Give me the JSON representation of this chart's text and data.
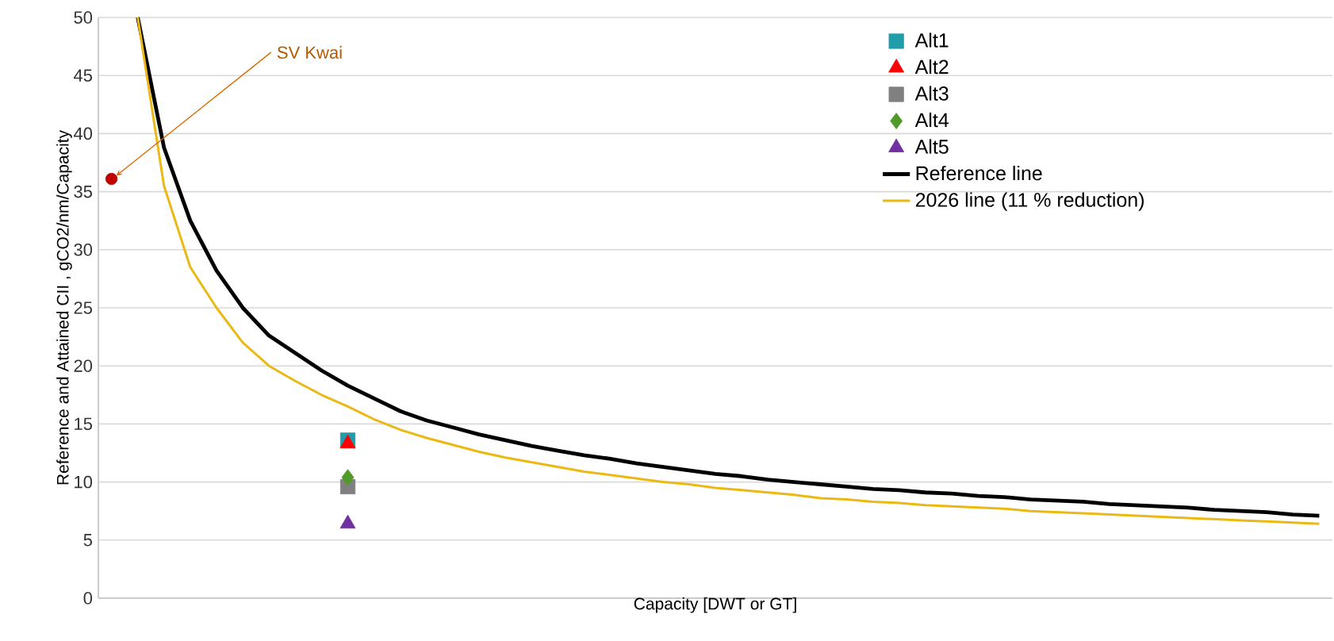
{
  "chart_data": {
    "type": "scatter",
    "xlabel": "Capacity [DWT or GT]",
    "ylabel": "Reference and Attained CII , gCO2/nm/Capacity",
    "categories": [
      null,
      null,
      null,
      null,
      null,
      null,
      null,
      null,
      null,
      null,
      null,
      null,
      null,
      null,
      null,
      null,
      null,
      null,
      null,
      null,
      null,
      null,
      null,
      null,
      null,
      null,
      null,
      null,
      null,
      null,
      null,
      null,
      null,
      null,
      null,
      null,
      null,
      null,
      null,
      null,
      null,
      null,
      null,
      null,
      null,
      null,
      null
    ],
    "ylim": [
      0,
      50
    ],
    "yticks": [
      0,
      5,
      10,
      15,
      20,
      25,
      30,
      35,
      40,
      45,
      50
    ],
    "grid": "y",
    "legend": "top right",
    "tick_labels": "y",
    "annotations": [
      "SV Kwai"
    ],
    "series": [
      {
        "name": "Alt1",
        "marker": "square",
        "color": "#1f9eaa",
        "values": [
          null,
          null,
          null,
          null,
          null,
          null,
          null,
          null,
          null,
          13.6,
          null,
          null,
          null,
          null,
          null,
          null,
          null,
          null,
          null,
          null,
          null,
          null,
          null,
          null,
          null,
          null,
          null,
          null,
          null,
          null,
          null,
          null,
          null,
          null,
          null,
          null,
          null,
          null,
          null,
          null,
          null,
          null,
          null,
          null,
          null,
          null,
          null
        ]
      },
      {
        "name": "Alt2",
        "marker": "triangle",
        "color": "#ff0000",
        "values": [
          null,
          null,
          null,
          null,
          null,
          null,
          null,
          null,
          null,
          13.3,
          null,
          null,
          null,
          null,
          null,
          null,
          null,
          null,
          null,
          null,
          null,
          null,
          null,
          null,
          null,
          null,
          null,
          null,
          null,
          null,
          null,
          null,
          null,
          null,
          null,
          null,
          null,
          null,
          null,
          null,
          null,
          null,
          null,
          null,
          null,
          null,
          null
        ]
      },
      {
        "name": "Alt3",
        "marker": "square",
        "color": "#808080",
        "values": [
          null,
          null,
          null,
          null,
          null,
          null,
          null,
          null,
          null,
          9.6,
          null,
          null,
          null,
          null,
          null,
          null,
          null,
          null,
          null,
          null,
          null,
          null,
          null,
          null,
          null,
          null,
          null,
          null,
          null,
          null,
          null,
          null,
          null,
          null,
          null,
          null,
          null,
          null,
          null,
          null,
          null,
          null,
          null,
          null,
          null,
          null,
          null
        ]
      },
      {
        "name": "Alt4",
        "marker": "diamond",
        "color": "#4f9a29",
        "values": [
          null,
          null,
          null,
          null,
          null,
          null,
          null,
          null,
          null,
          10.4,
          null,
          null,
          null,
          null,
          null,
          null,
          null,
          null,
          null,
          null,
          null,
          null,
          null,
          null,
          null,
          null,
          null,
          null,
          null,
          null,
          null,
          null,
          null,
          null,
          null,
          null,
          null,
          null,
          null,
          null,
          null,
          null,
          null,
          null,
          null,
          null,
          null
        ]
      },
      {
        "name": "Alt5",
        "marker": "triangle",
        "color": "#7030a0",
        "values": [
          null,
          null,
          null,
          null,
          null,
          null,
          null,
          null,
          null,
          6.4,
          null,
          null,
          null,
          null,
          null,
          null,
          null,
          null,
          null,
          null,
          null,
          null,
          null,
          null,
          null,
          null,
          null,
          null,
          null,
          null,
          null,
          null,
          null,
          null,
          null,
          null,
          null,
          null,
          null,
          null,
          null,
          null,
          null,
          null,
          null,
          null,
          null
        ]
      },
      {
        "marker": "circle",
        "color": "#c00000",
        "values": [
          36.1,
          null,
          null,
          null,
          null,
          null,
          null,
          null,
          null,
          null,
          null,
          null,
          null,
          null,
          null,
          null,
          null,
          null,
          null,
          null,
          null,
          null,
          null,
          null,
          null,
          null,
          null,
          null,
          null,
          null,
          null,
          null,
          null,
          null,
          null,
          null,
          null,
          null,
          null,
          null,
          null,
          null,
          null,
          null,
          null,
          null,
          null
        ]
      },
      {
        "name": "Reference line",
        "type": "line",
        "marker": "none",
        "line_style": "solid",
        "color": "#000000",
        "values": [
          null,
          50,
          38.8,
          32.5,
          28.2,
          25.0,
          22.6,
          21.1,
          19.6,
          18.3,
          17.2,
          16.1,
          15.3,
          14.7,
          14.1,
          13.6,
          13.1,
          12.7,
          12.3,
          12.0,
          11.6,
          11.3,
          11.0,
          10.7,
          10.5,
          10.2,
          10.0,
          9.8,
          9.6,
          9.4,
          9.3,
          9.1,
          9.0,
          8.8,
          8.7,
          8.5,
          8.4,
          8.3,
          8.1,
          8.0,
          7.9,
          7.8,
          7.6,
          7.5,
          7.4,
          7.2,
          7.1
        ]
      },
      {
        "name": "2026 line (11 % reduction)",
        "type": "line",
        "marker": "none",
        "line_style": "solid",
        "color": "#ebb914",
        "values": [
          null,
          50,
          35.5,
          28.5,
          25.0,
          22.0,
          20.0,
          18.7,
          17.5,
          16.5,
          15.4,
          14.5,
          13.8,
          13.2,
          12.6,
          12.1,
          11.7,
          11.3,
          10.9,
          10.6,
          10.3,
          10.0,
          9.8,
          9.5,
          9.3,
          9.1,
          8.9,
          8.6,
          8.5,
          8.3,
          8.2,
          8.0,
          7.9,
          7.8,
          7.7,
          7.5,
          7.4,
          7.3,
          7.2,
          7.1,
          7.0,
          6.9,
          6.8,
          6.7,
          6.6,
          6.5,
          6.4
        ]
      }
    ]
  }
}
